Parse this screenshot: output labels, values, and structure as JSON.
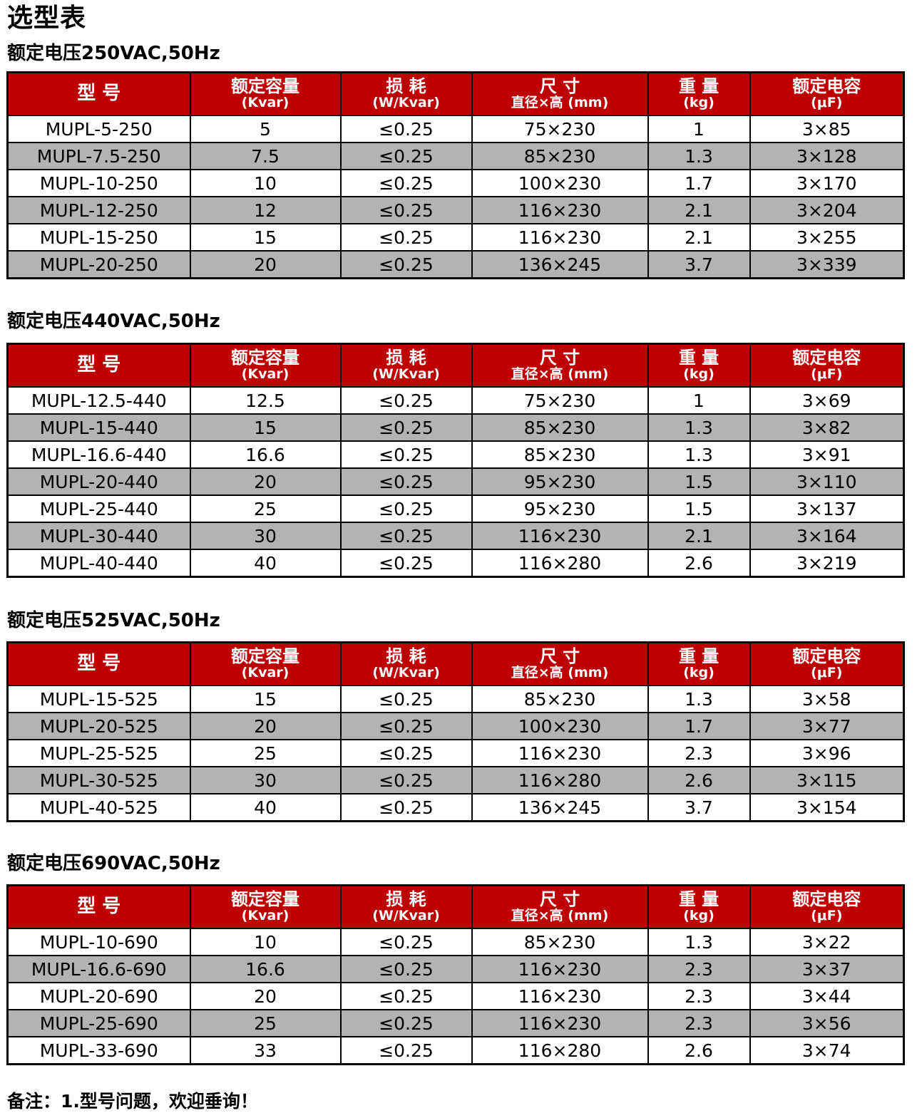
{
  "page_title": "选型表",
  "colors": {
    "header_bg": "#bd0000",
    "header_text": "#ffffff",
    "alt_row_bg": "#b3b3b3"
  },
  "columns": [
    {
      "label": "型 号",
      "unit": ""
    },
    {
      "label": "额定容量",
      "unit": "(Kvar)"
    },
    {
      "label": "损 耗",
      "unit": "(W/Kvar)"
    },
    {
      "label": "尺 寸",
      "unit": "直径×高 (mm)"
    },
    {
      "label": "重 量",
      "unit": "(kg)"
    },
    {
      "label": "额定电容",
      "unit": "(μF)"
    }
  ],
  "sections": [
    {
      "title": "额定电压250VAC,50Hz",
      "rows": [
        [
          "MUPL-5-250",
          "5",
          "≤0.25",
          "75×230",
          "1",
          "3×85"
        ],
        [
          "MUPL-7.5-250",
          "7.5",
          "≤0.25",
          "85×230",
          "1.3",
          "3×128"
        ],
        [
          "MUPL-10-250",
          "10",
          "≤0.25",
          "100×230",
          "1.7",
          "3×170"
        ],
        [
          "MUPL-12-250",
          "12",
          "≤0.25",
          "116×230",
          "2.1",
          "3×204"
        ],
        [
          "MUPL-15-250",
          "15",
          "≤0.25",
          "116×230",
          "2.1",
          "3×255"
        ],
        [
          "MUPL-20-250",
          "20",
          "≤0.25",
          "136×245",
          "3.7",
          "3×339"
        ]
      ]
    },
    {
      "title": "额定电压440VAC,50Hz",
      "rows": [
        [
          "MUPL-12.5-440",
          "12.5",
          "≤0.25",
          "75×230",
          "1",
          "3×69"
        ],
        [
          "MUPL-15-440",
          "15",
          "≤0.25",
          "85×230",
          "1.3",
          "3×82"
        ],
        [
          "MUPL-16.6-440",
          "16.6",
          "≤0.25",
          "85×230",
          "1.3",
          "3×91"
        ],
        [
          "MUPL-20-440",
          "20",
          "≤0.25",
          "95×230",
          "1.5",
          "3×110"
        ],
        [
          "MUPL-25-440",
          "25",
          "≤0.25",
          "95×230",
          "1.5",
          "3×137"
        ],
        [
          "MUPL-30-440",
          "30",
          "≤0.25",
          "116×230",
          "2.1",
          "3×164"
        ],
        [
          "MUPL-40-440",
          "40",
          "≤0.25",
          "116×280",
          "2.6",
          "3×219"
        ]
      ]
    },
    {
      "title": "额定电压525VAC,50Hz",
      "rows": [
        [
          "MUPL-15-525",
          "15",
          "≤0.25",
          "85×230",
          "1.3",
          "3×58"
        ],
        [
          "MUPL-20-525",
          "20",
          "≤0.25",
          "100×230",
          "1.7",
          "3×77"
        ],
        [
          "MUPL-25-525",
          "25",
          "≤0.25",
          "116×230",
          "2.3",
          "3×96"
        ],
        [
          "MUPL-30-525",
          "30",
          "≤0.25",
          "116×280",
          "2.6",
          "3×115"
        ],
        [
          "MUPL-40-525",
          "40",
          "≤0.25",
          "136×245",
          "3.7",
          "3×154"
        ]
      ]
    },
    {
      "title": "额定电压690VAC,50Hz",
      "rows": [
        [
          "MUPL-10-690",
          "10",
          "≤0.25",
          "85×230",
          "1.3",
          "3×22"
        ],
        [
          "MUPL-16.6-690",
          "16.6",
          "≤0.25",
          "116×230",
          "2.3",
          "3×37"
        ],
        [
          "MUPL-20-690",
          "20",
          "≤0.25",
          "116×230",
          "2.3",
          "3×44"
        ],
        [
          "MUPL-25-690",
          "25",
          "≤0.25",
          "116×230",
          "2.3",
          "3×56"
        ],
        [
          "MUPL-33-690",
          "33",
          "≤0.25",
          "116×280",
          "2.6",
          "3×74"
        ]
      ]
    }
  ],
  "note": "备注：1.型号问题，欢迎垂询！"
}
